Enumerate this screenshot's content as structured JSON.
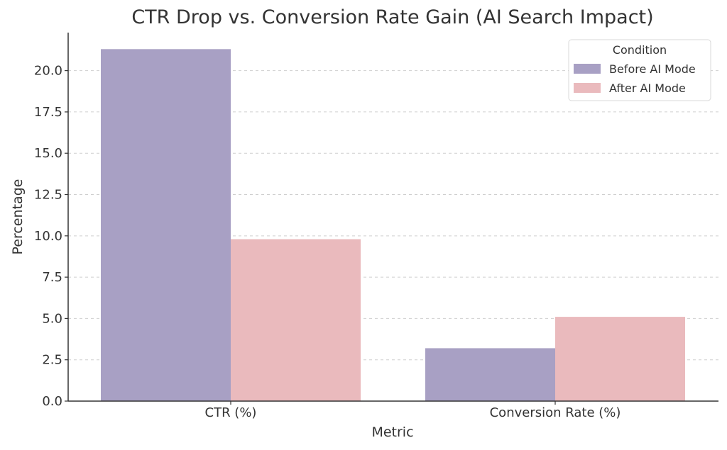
{
  "chart_data": {
    "type": "bar",
    "title": "CTR Drop vs. Conversion Rate Gain (AI Search Impact)",
    "xlabel": "Metric",
    "ylabel": "Percentage",
    "categories": [
      "CTR (%)",
      "Conversion Rate (%)"
    ],
    "series": [
      {
        "name": "Before AI Mode",
        "values": [
          21.3,
          3.2
        ],
        "color": "#a8a0c4"
      },
      {
        "name": "After AI Mode",
        "values": [
          9.8,
          5.1
        ],
        "color": "#eababd"
      }
    ],
    "ylim": [
      0,
      22.3
    ],
    "yticks": [
      0.0,
      2.5,
      5.0,
      7.5,
      10.0,
      12.5,
      15.0,
      17.5,
      20.0
    ],
    "ytick_labels": [
      "0.0",
      "2.5",
      "5.0",
      "7.5",
      "10.0",
      "12.5",
      "15.0",
      "17.5",
      "20.0"
    ],
    "grid": "y-dashed",
    "legend": {
      "title": "Condition",
      "placement": "top-right"
    }
  }
}
